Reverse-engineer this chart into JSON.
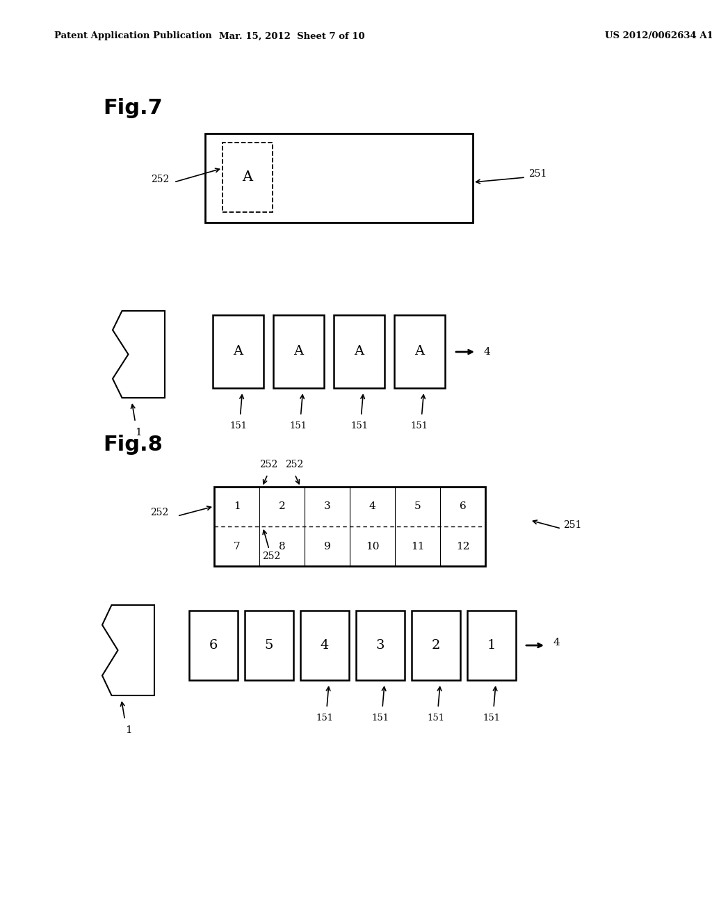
{
  "background_color": "#ffffff",
  "header_left": "Patent Application Publication",
  "header_mid": "Mar. 15, 2012  Sheet 7 of 10",
  "header_right": "US 2012/0062634 A1",
  "fig7_label": "Fig.7",
  "fig8_label": "Fig.8",
  "fig8_grid_values_top": [
    "1",
    "2",
    "3",
    "4",
    "5",
    "6"
  ],
  "fig8_grid_values_bot": [
    "7",
    "8",
    "9",
    "10",
    "11",
    "12"
  ],
  "fig8_bottom_boxes": [
    "6",
    "5",
    "4",
    "3",
    "2",
    "1"
  ]
}
